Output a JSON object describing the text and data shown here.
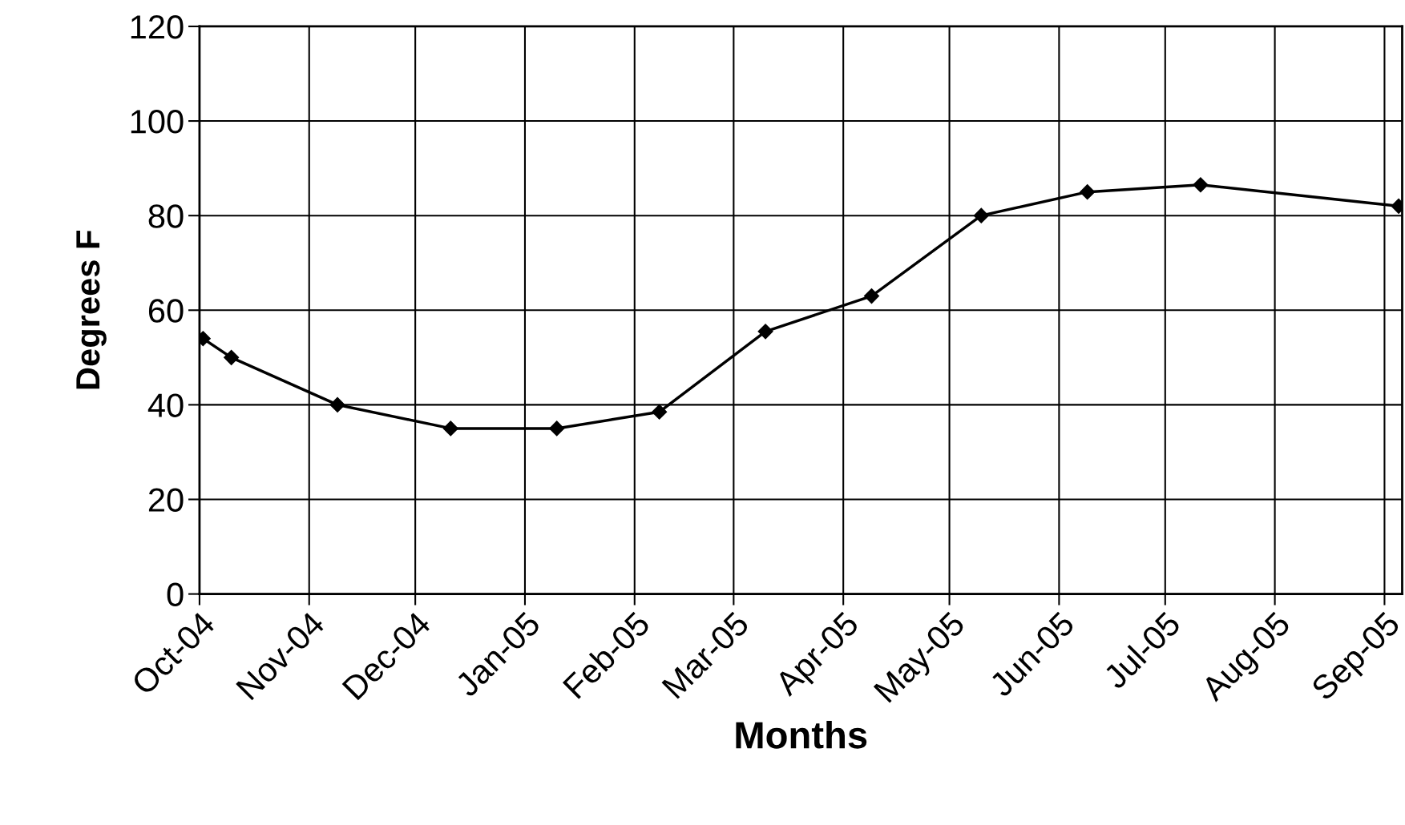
{
  "chart_data": {
    "type": "line",
    "xlabel": "Months",
    "ylabel": "Degrees F",
    "x": [
      "2004-10-02",
      "2004-10-10",
      "2004-11-09",
      "2004-12-11",
      "2005-01-10",
      "2005-02-08",
      "2005-03-10",
      "2005-04-09",
      "2005-05-10",
      "2005-06-09",
      "2005-07-11",
      "2005-09-05"
    ],
    "series": [
      {
        "color": "#000000",
        "values": [
          54,
          50,
          40,
          35,
          35,
          38.5,
          55.5,
          63,
          80,
          85,
          86.5,
          82
        ]
      }
    ],
    "xlim": [
      "2004-10-01",
      "2005-09-06"
    ],
    "xticks": [
      {
        "value": "2004-10-01",
        "label": "Oct-04"
      },
      {
        "value": "2004-11-01",
        "label": "Nov-04"
      },
      {
        "value": "2004-12-01",
        "label": "Dec-04"
      },
      {
        "value": "2005-01-01",
        "label": "Jan-05"
      },
      {
        "value": "2005-02-01",
        "label": "Feb-05"
      },
      {
        "value": "2005-03-01",
        "label": "Mar-05"
      },
      {
        "value": "2005-04-01",
        "label": "Apr-05"
      },
      {
        "value": "2005-05-01",
        "label": "May-05"
      },
      {
        "value": "2005-06-01",
        "label": "Jun-05"
      },
      {
        "value": "2005-07-01",
        "label": "Jul-05"
      },
      {
        "value": "2005-08-01",
        "label": "Aug-05"
      },
      {
        "value": "2005-09-01",
        "label": "Sep-05"
      }
    ],
    "ylim": [
      0,
      120
    ],
    "yticks": [
      0,
      20,
      40,
      60,
      80,
      100,
      120
    ],
    "grid": true,
    "legend": false,
    "marker": "diamond",
    "line_style": "solid"
  }
}
